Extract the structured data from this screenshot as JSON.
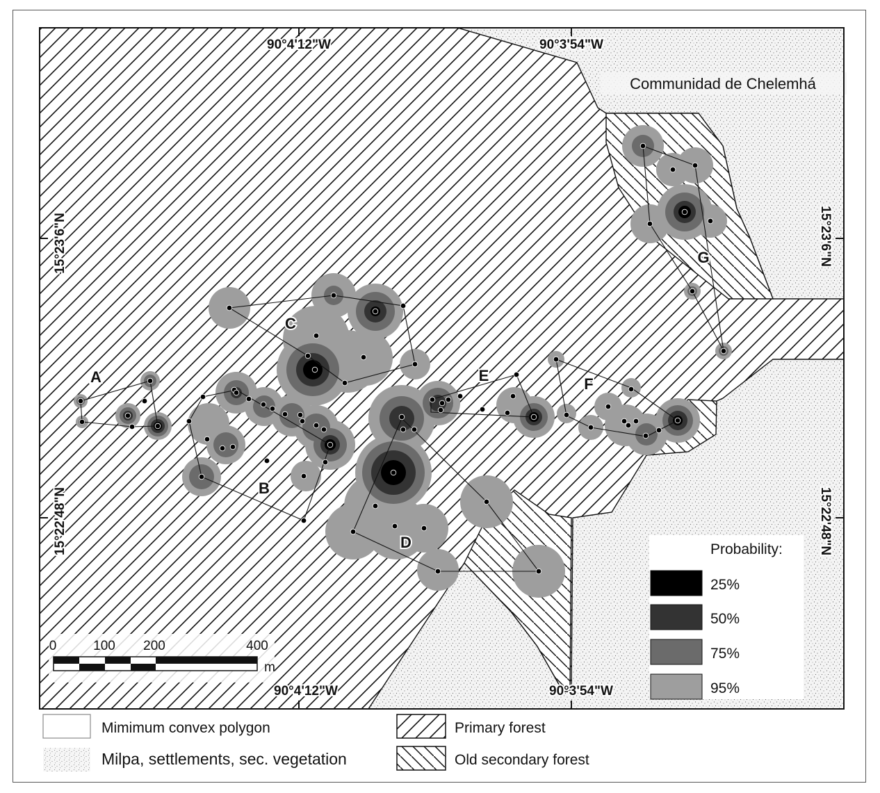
{
  "map": {
    "place_label": "Communidad de Chelemhá",
    "coords": {
      "top_left": "90°4'12\"W",
      "top_right": "90°3'54\"W",
      "bottom_left": "90°4'12\"W",
      "bottom_right": "90°3'54\"W",
      "left_upper": "15°23'6\"N",
      "left_lower": "15°22'48\"N",
      "right_upper": "15°23'6\"N",
      "right_lower": "15°22'48\"N"
    },
    "groups": [
      "A",
      "B",
      "C",
      "D",
      "E",
      "F",
      "G"
    ],
    "scale_bar": {
      "labels": [
        "0",
        "100",
        "200",
        "400"
      ],
      "unit": "m"
    }
  },
  "probability_legend": {
    "title": "Probability:",
    "items": [
      {
        "label": "25%",
        "color": "#000000"
      },
      {
        "label": "50%",
        "color": "#333333"
      },
      {
        "label": "75%",
        "color": "#6b6b6b"
      },
      {
        "label": "95%",
        "color": "#9e9e9e"
      }
    ]
  },
  "legend": {
    "mcp": "Mimimum convex polygon",
    "milpa": "Milpa, settlements, sec. vegetation",
    "primary": "Primary forest",
    "old_secondary": "Old secondary forest"
  }
}
